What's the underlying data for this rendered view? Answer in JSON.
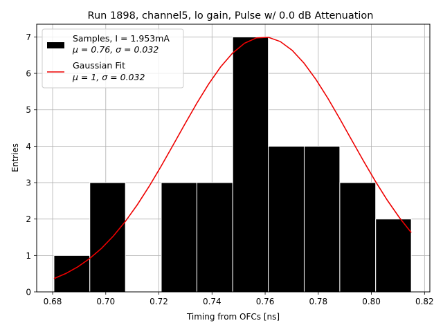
{
  "chart_data": {
    "type": "bar",
    "title": "Run 1898, channel5, lo gain, Pulse w/ 0.0 dB Attenuation",
    "xlabel": "Timing from OFCs [ns]",
    "ylabel": "Entries",
    "xlim": [
      0.674,
      0.822
    ],
    "ylim": [
      0,
      7.35
    ],
    "grid": true,
    "legend_position": "top-left",
    "x_ticks": [
      "0.68",
      "0.70",
      "0.72",
      "0.74",
      "0.76",
      "0.78",
      "0.80",
      "0.82"
    ],
    "x_tick_values": [
      0.68,
      0.7,
      0.72,
      0.74,
      0.76,
      0.78,
      0.8,
      0.82
    ],
    "y_ticks": [
      "0",
      "1",
      "2",
      "3",
      "4",
      "5",
      "6",
      "7"
    ],
    "y_tick_values": [
      0,
      1,
      2,
      3,
      4,
      5,
      6,
      7
    ],
    "histogram": {
      "name": "Samples, I = 1.953mA",
      "stats": "μ = 0.76, σ = 0.032",
      "color": "#000000",
      "bins": [
        {
          "start": 0.6805,
          "end": 0.694,
          "count": 1
        },
        {
          "start": 0.694,
          "end": 0.7074,
          "count": 3
        },
        {
          "start": 0.7074,
          "end": 0.7209,
          "count": 0
        },
        {
          "start": 0.7209,
          "end": 0.7343,
          "count": 3
        },
        {
          "start": 0.7343,
          "end": 0.7478,
          "count": 3
        },
        {
          "start": 0.7478,
          "end": 0.7612,
          "count": 7
        },
        {
          "start": 0.7612,
          "end": 0.7747,
          "count": 4
        },
        {
          "start": 0.7747,
          "end": 0.7881,
          "count": 4
        },
        {
          "start": 0.7881,
          "end": 0.8016,
          "count": 3
        },
        {
          "start": 0.8016,
          "end": 0.815,
          "count": 2
        }
      ]
    },
    "fit": {
      "name": "Gaussian Fit",
      "stats": "μ = 1, σ = 0.032",
      "color": "#ee0000",
      "amplitude": 7.0,
      "mean": 0.7595,
      "sigma": 0.0325,
      "x_range": [
        0.6805,
        0.815
      ]
    }
  }
}
